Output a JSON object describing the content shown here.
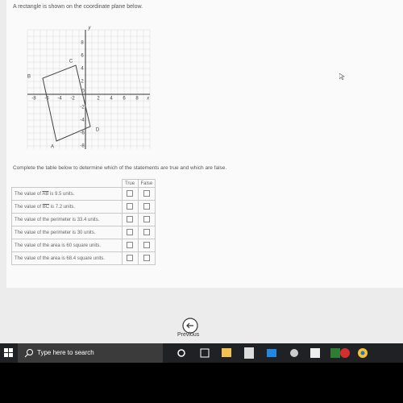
{
  "question": {
    "prompt": "A rectangle is shown on the coordinate plane below.",
    "graph": {
      "y_axis_name": "y",
      "x_axis_name": "x",
      "origin_label": "0",
      "y_tick_labels": [
        "8",
        "6",
        "4",
        "2",
        "-2",
        "-4",
        "-6",
        "-8"
      ],
      "x_tick_labels": [
        "-8",
        "-6",
        "-4",
        "-2",
        "2",
        "4",
        "6",
        "8"
      ],
      "vertex_labels": [
        "A",
        "B",
        "C",
        "D"
      ]
    },
    "instructions": "Complete the table below to determine which of the statements are true and which are false.",
    "table": {
      "header": [
        "True",
        "False"
      ],
      "rows": [
        {
          "before": "The value of ",
          "segment": "AB",
          "after": " is 9.5 units."
        },
        {
          "before": "The value of ",
          "segment": "BC",
          "after": " is 7.2 units."
        },
        {
          "before": "The value of the perimeter is 33.4 units."
        },
        {
          "before": "The value of the perimeter is 30 units."
        },
        {
          "before": "The value of the area is 60 square units."
        },
        {
          "before": "The value of the area is 68.4 square units."
        }
      ]
    }
  },
  "navigation": {
    "previous": "Previous"
  },
  "taskbar": {
    "search": "Type here to search"
  }
}
